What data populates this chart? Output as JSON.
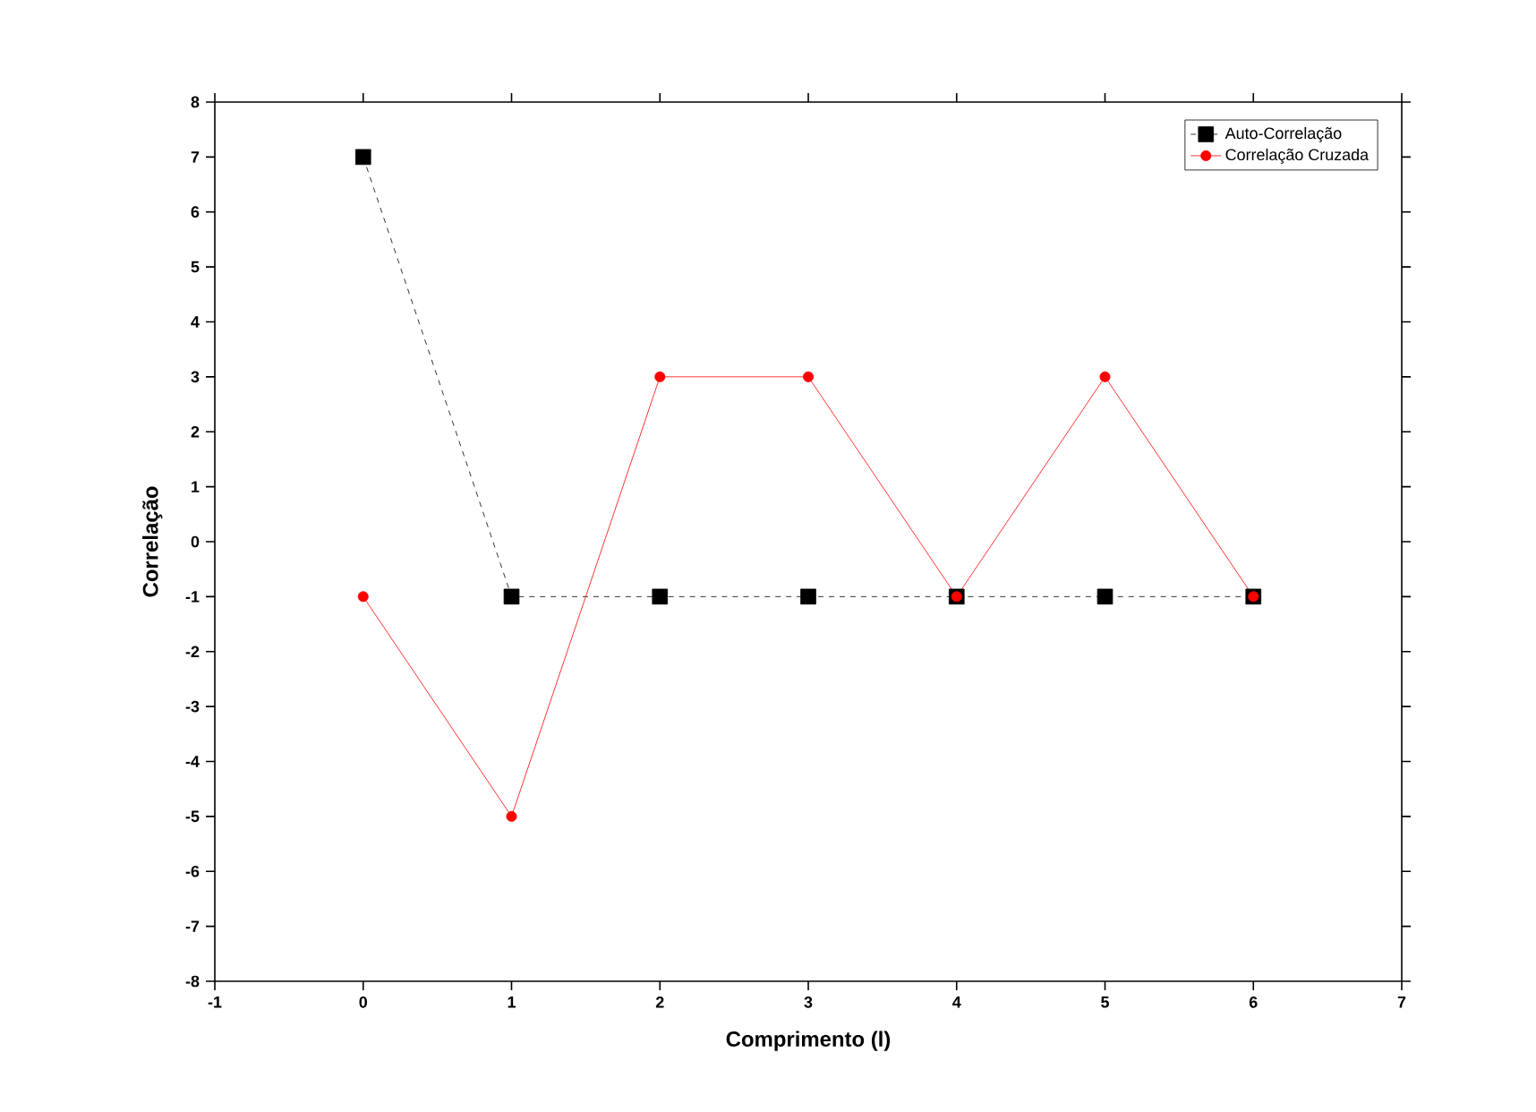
{
  "chart_data": {
    "type": "line",
    "xlabel": "Comprimento (l)",
    "ylabel": "Correlação",
    "x": [
      0,
      1,
      2,
      3,
      4,
      5,
      6
    ],
    "series": [
      {
        "name": "Auto-Correlação",
        "color": "#000000",
        "values": [
          7,
          -1,
          -1,
          -1,
          -1,
          -1,
          -1
        ],
        "marker": "square",
        "line_style": "dashed"
      },
      {
        "name": "Correlação Cruzada",
        "color": "#ff0000",
        "values": [
          -1,
          -5,
          3,
          3,
          -1,
          3,
          -1
        ],
        "marker": "circle",
        "line_style": "solid"
      }
    ],
    "xlim": [
      -1,
      7
    ],
    "xticks": [
      -1,
      0,
      1,
      2,
      3,
      4,
      5,
      6,
      7
    ],
    "ylim": [
      -8,
      8
    ],
    "yticks": [
      -8,
      -7,
      -6,
      -5,
      -4,
      -3,
      -2,
      -1,
      0,
      1,
      2,
      3,
      4,
      5,
      6,
      7,
      8
    ],
    "grid": false,
    "legend": "top right"
  }
}
